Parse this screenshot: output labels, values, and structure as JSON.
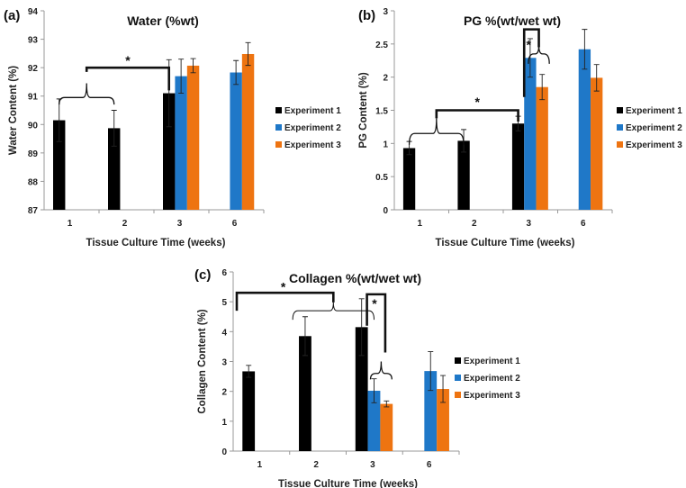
{
  "colors": {
    "Experiment 1": "#000000",
    "Experiment 2": "#1f78c8",
    "Experiment 3": "#ee7411"
  },
  "chart_data": [
    {
      "type": "bar",
      "panel": "(a)",
      "title": "Water (%wt)",
      "xlabel": "Tissue Culture Time (weeks)",
      "ylabel": "Water Content (%)",
      "ylim": [
        87,
        94
      ],
      "yticks": [
        "87",
        "88",
        "89",
        "90",
        "91",
        "92",
        "93",
        "94"
      ],
      "categories": [
        "1",
        "2",
        "3",
        "6"
      ],
      "legend": "right",
      "series": [
        {
          "name": "Experiment 1",
          "values": [
            90.15,
            89.87,
            91.1,
            null
          ],
          "errors": [
            0.75,
            0.63,
            1.18,
            null
          ]
        },
        {
          "name": "Experiment 2",
          "values": [
            null,
            null,
            91.7,
            91.83
          ],
          "errors": [
            null,
            null,
            0.6,
            0.42
          ]
        },
        {
          "name": "Experiment 3",
          "values": [
            null,
            null,
            92.07,
            92.48
          ],
          "errors": [
            null,
            null,
            0.25,
            0.4
          ]
        }
      ],
      "annotations": [
        "*"
      ]
    },
    {
      "type": "bar",
      "panel": "(b)",
      "title": "PG %(wt/wet wt)",
      "xlabel": "Tissue Culture Time (weeks)",
      "ylabel": "PG Content (%)",
      "ylim": [
        0,
        3
      ],
      "yticks": [
        "0",
        "0.5",
        "1",
        "1.5",
        "2",
        "2.5",
        "3"
      ],
      "categories": [
        "1",
        "2",
        "3",
        "6"
      ],
      "legend": "right",
      "series": [
        {
          "name": "Experiment 1",
          "values": [
            0.93,
            1.04,
            1.3,
            null
          ],
          "errors": [
            0.1,
            0.17,
            0.11,
            null
          ]
        },
        {
          "name": "Experiment 2",
          "values": [
            null,
            null,
            2.29,
            2.42
          ],
          "errors": [
            null,
            null,
            0.29,
            0.3
          ]
        },
        {
          "name": "Experiment 3",
          "values": [
            null,
            null,
            1.85,
            1.99
          ],
          "errors": [
            null,
            null,
            0.19,
            0.2
          ]
        }
      ],
      "annotations": [
        "*",
        "*"
      ]
    },
    {
      "type": "bar",
      "panel": "(c)",
      "title": "Collagen %(wt/wet wt)",
      "xlabel": "Tissue Culture Time (weeks)",
      "ylabel": "Collagen Content (%)",
      "ylim": [
        0,
        6
      ],
      "yticks": [
        "0",
        "1",
        "2",
        "3",
        "4",
        "5",
        "6"
      ],
      "categories": [
        "1",
        "2",
        "3",
        "6"
      ],
      "legend": "right",
      "series": [
        {
          "name": "Experiment 1",
          "values": [
            2.67,
            3.85,
            4.15,
            null
          ],
          "errors": [
            0.2,
            0.65,
            0.95,
            null
          ]
        },
        {
          "name": "Experiment 2",
          "values": [
            null,
            null,
            2.02,
            2.68
          ],
          "errors": [
            null,
            null,
            0.4,
            0.65
          ]
        },
        {
          "name": "Experiment 3",
          "values": [
            null,
            null,
            1.58,
            2.08
          ],
          "errors": [
            null,
            null,
            0.1,
            0.45
          ]
        }
      ],
      "annotations": [
        "*",
        "*"
      ]
    }
  ]
}
